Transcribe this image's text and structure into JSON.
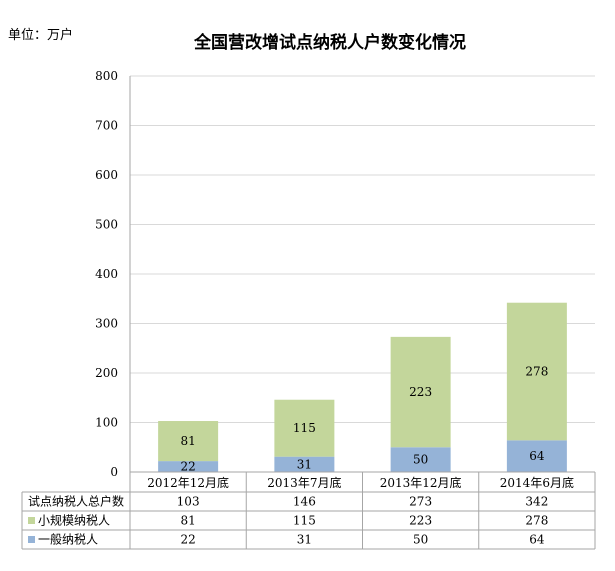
{
  "unit_label": "单位：万户",
  "chart_data": {
    "type": "bar",
    "stacked": true,
    "title": "全国营改增试点纳税人户数变化情况",
    "categories": [
      "2012年12月底",
      "2013年7月底",
      "2013年12月底",
      "2014年6月底"
    ],
    "ylim": [
      0,
      800
    ],
    "yticks": [
      "0",
      "100",
      "200",
      "300",
      "400",
      "500",
      "600",
      "700",
      "800"
    ],
    "grid": true,
    "series": [
      {
        "name": "一般纳税人",
        "values": [
          22,
          31,
          50,
          64
        ],
        "color": "#95b3d7"
      },
      {
        "name": "小规模纳税人",
        "values": [
          81,
          115,
          223,
          278
        ],
        "color": "#c3d69b"
      }
    ],
    "table": {
      "rows": [
        {
          "label": "试点纳税人总户数",
          "values": [
            "103",
            "146",
            "273",
            "342"
          ],
          "legend": false,
          "color": ""
        },
        {
          "label": "小规模纳税人",
          "values": [
            "81",
            "115",
            "223",
            "278"
          ],
          "legend": true,
          "color": "#c3d69b"
        },
        {
          "label": "一般纳税人",
          "values": [
            "22",
            "31",
            "50",
            "64"
          ],
          "legend": true,
          "color": "#95b3d7"
        }
      ]
    }
  }
}
